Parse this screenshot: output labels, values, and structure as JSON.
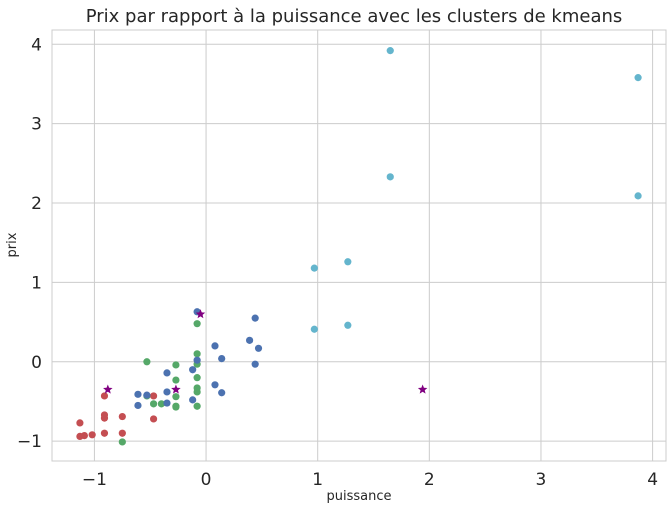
{
  "chart_data": {
    "type": "scatter",
    "title": "Prix par rapport à la puissance avec les clusters de kmeans",
    "xlabel": "puissance",
    "ylabel": "prix",
    "xlim": [
      -1.38,
      4.12
    ],
    "ylim": [
      -1.25,
      4.18
    ],
    "xticks": [
      -1,
      0,
      1,
      2,
      3,
      4
    ],
    "yticks": [
      -1,
      0,
      1,
      2,
      3,
      4
    ],
    "xtick_labels": [
      "−1",
      "0",
      "1",
      "2",
      "3",
      "4"
    ],
    "ytick_labels": [
      "−1",
      "0",
      "1",
      "2",
      "3",
      "4"
    ],
    "grid": true,
    "series": [
      {
        "color": "#c44e52",
        "marker": "circle",
        "points": [
          [
            -1.13,
            -0.77
          ],
          [
            -1.13,
            -0.94
          ],
          [
            -1.09,
            -0.93
          ],
          [
            -1.02,
            -0.92
          ],
          [
            -0.91,
            -0.43
          ],
          [
            -0.91,
            -0.67
          ],
          [
            -0.91,
            -0.71
          ],
          [
            -0.91,
            -0.9
          ],
          [
            -0.75,
            -0.69
          ],
          [
            -0.75,
            -0.9
          ],
          [
            -0.47,
            -0.43
          ],
          [
            -0.47,
            -0.72
          ]
        ]
      },
      {
        "color": "#55a868",
        "marker": "circle",
        "points": [
          [
            -0.75,
            -1.01
          ],
          [
            -0.53,
            0.0
          ],
          [
            -0.53,
            -0.43
          ],
          [
            -0.47,
            -0.53
          ],
          [
            -0.4,
            -0.53
          ],
          [
            -0.27,
            -0.04
          ],
          [
            -0.27,
            -0.23
          ],
          [
            -0.27,
            -0.44
          ],
          [
            -0.27,
            -0.56
          ],
          [
            -0.27,
            -0.57
          ],
          [
            -0.08,
            0.48
          ],
          [
            -0.08,
            0.1
          ],
          [
            -0.08,
            -0.03
          ],
          [
            -0.08,
            -0.2
          ],
          [
            -0.08,
            -0.33
          ],
          [
            -0.08,
            -0.38
          ],
          [
            -0.08,
            -0.56
          ]
        ]
      },
      {
        "color": "#4c72b0",
        "marker": "circle",
        "points": [
          [
            -0.61,
            -0.41
          ],
          [
            -0.61,
            -0.55
          ],
          [
            -0.53,
            -0.42
          ],
          [
            -0.35,
            -0.14
          ],
          [
            -0.35,
            -0.38
          ],
          [
            -0.35,
            -0.52
          ],
          [
            -0.12,
            -0.1
          ],
          [
            -0.12,
            -0.48
          ],
          [
            -0.08,
            0.63
          ],
          [
            -0.08,
            0.02
          ],
          [
            0.08,
            0.2
          ],
          [
            0.08,
            -0.29
          ],
          [
            0.14,
            0.04
          ],
          [
            0.14,
            -0.39
          ],
          [
            0.39,
            0.27
          ],
          [
            0.44,
            0.55
          ],
          [
            0.44,
            -0.03
          ],
          [
            0.47,
            0.17
          ]
        ]
      },
      {
        "color": "#64b5cd",
        "marker": "circle",
        "points": [
          [
            0.97,
            1.18
          ],
          [
            0.97,
            0.41
          ],
          [
            1.27,
            1.26
          ],
          [
            1.27,
            0.46
          ],
          [
            1.65,
            3.92
          ],
          [
            1.65,
            2.33
          ],
          [
            3.87,
            3.58
          ],
          [
            3.87,
            2.09
          ]
        ]
      },
      {
        "color": "#800080",
        "marker": "star",
        "points": [
          [
            -0.88,
            -0.35
          ],
          [
            -0.27,
            -0.35
          ],
          [
            -0.05,
            0.6
          ],
          [
            1.94,
            -0.35
          ]
        ]
      }
    ]
  }
}
